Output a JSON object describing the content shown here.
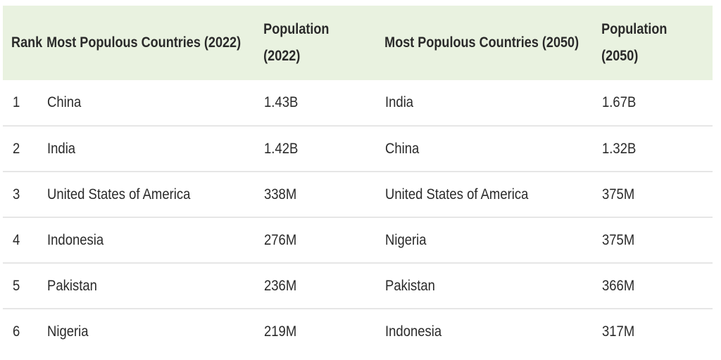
{
  "table": {
    "headers": {
      "rank": "Rank",
      "countries_2022": "Most Populous Countries (2022)",
      "population_2022_line1": "Population",
      "population_2022_line2": "(2022)",
      "countries_2050": "Most Populous Countries (2050)",
      "population_2050_line1": "Population",
      "population_2050_line2": "(2050)"
    },
    "rows": [
      {
        "rank": "1",
        "country_2022": "China",
        "population_2022": "1.43B",
        "country_2050": "India",
        "population_2050": "1.67B"
      },
      {
        "rank": "2",
        "country_2022": "India",
        "population_2022": "1.42B",
        "country_2050": "China",
        "population_2050": "1.32B"
      },
      {
        "rank": "3",
        "country_2022": "United States of America",
        "population_2022": "338M",
        "country_2050": "United States of America",
        "population_2050": "375M"
      },
      {
        "rank": "4",
        "country_2022": "Indonesia",
        "population_2022": "276M",
        "country_2050": "Nigeria",
        "population_2050": "375M"
      },
      {
        "rank": "5",
        "country_2022": "Pakistan",
        "population_2022": "236M",
        "country_2050": "Pakistan",
        "population_2050": "366M"
      },
      {
        "rank": "6",
        "country_2022": "Nigeria",
        "population_2022": "219M",
        "country_2050": "Indonesia",
        "population_2050": "317M"
      }
    ],
    "colors": {
      "header_background": "#e9f2e0",
      "row_divider": "#e6e6e6",
      "text": "#2a2a2a"
    }
  }
}
